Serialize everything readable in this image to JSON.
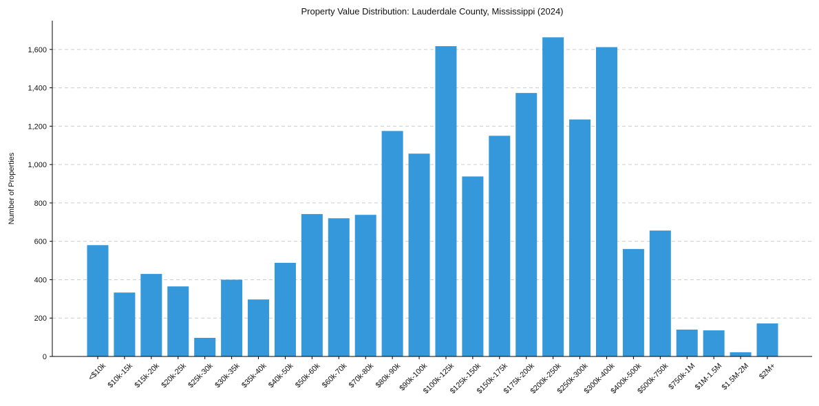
{
  "chart_data": {
    "type": "bar",
    "title": "Property Value Distribution: Lauderdale County, Mississippi (2024)",
    "xlabel": "",
    "ylabel": "Number of Properties",
    "ylim": [
      0,
      1750
    ],
    "yticks": [
      0,
      200,
      400,
      600,
      800,
      1000,
      1200,
      1400,
      1600
    ],
    "ytick_labels": [
      "0",
      "200",
      "400",
      "600",
      "800",
      "1,000",
      "1,200",
      "1,400",
      "1,600"
    ],
    "grid": true,
    "bar_color": "#3498db",
    "categories": [
      "<$10k",
      "$10k-15k",
      "$15k-20k",
      "$20k-25k",
      "$25k-30k",
      "$30k-35k",
      "$35k-40k",
      "$40k-50k",
      "$50k-60k",
      "$60k-70k",
      "$70k-80k",
      "$80k-90k",
      "$90k-100k",
      "$100k-125k",
      "$125k-150k",
      "$150k-175k",
      "$175k-200k",
      "$200k-250k",
      "$250k-300k",
      "$300k-400k",
      "$400k-500k",
      "$500k-750k",
      "$750k-1M",
      "$1M-1.5M",
      "$1.5M-2M",
      "$2M+"
    ],
    "values": [
      580,
      333,
      430,
      365,
      97,
      400,
      297,
      488,
      742,
      720,
      738,
      1175,
      1057,
      1617,
      938,
      1150,
      1373,
      1663,
      1235,
      1612,
      560,
      656,
      140,
      136,
      22,
      172
    ]
  }
}
